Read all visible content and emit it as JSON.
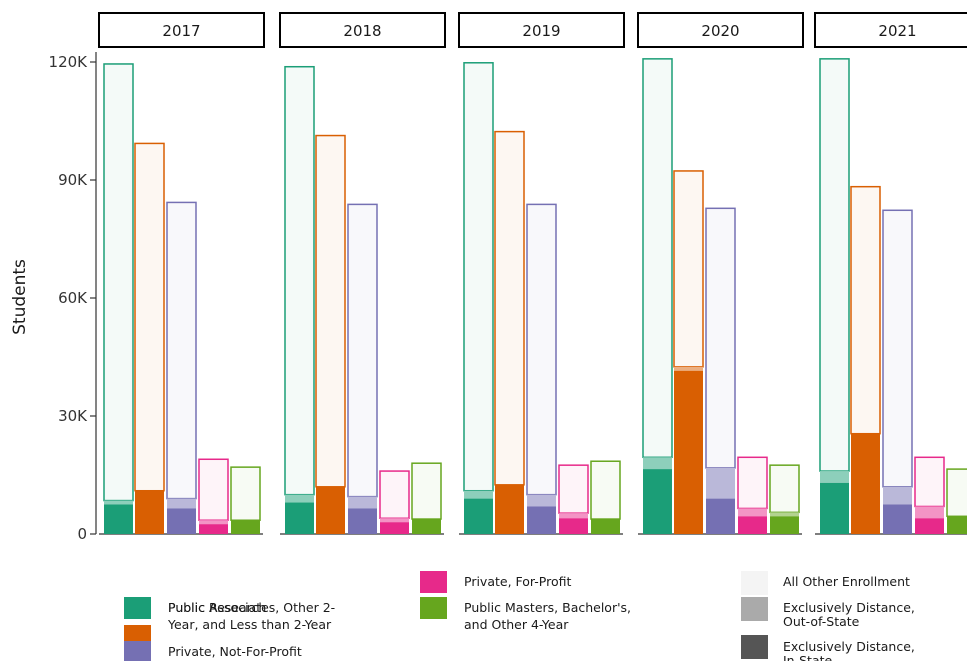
{
  "chart_data": {
    "type": "bar",
    "facets": [
      "2017",
      "2018",
      "2019",
      "2020",
      "2021"
    ],
    "ylabel": "Students",
    "xlabel": "",
    "ylim": [
      0,
      120000
    ],
    "yticks": [
      0,
      30000,
      60000,
      90000,
      120000
    ],
    "ytick_labels": [
      "0",
      "30K",
      "60K",
      "90K",
      "120K"
    ],
    "grid": false,
    "legend_position": "bottom",
    "sectors": [
      {
        "name": "Public Research",
        "color": "#1b9e77"
      },
      {
        "name": "Public Associates, Other 2-Year, and Less than 2-Year",
        "color": "#d95f02"
      },
      {
        "name": "Private, Not-For-Profit",
        "color": "#7570b3"
      },
      {
        "name": "Private, For-Profit",
        "color": "#e7298a"
      },
      {
        "name": "Public Masters, Bachelor's, and Other 4-Year",
        "color": "#66a61e"
      }
    ],
    "enrollment_types": [
      {
        "name": "All Other Enrollment",
        "color": "#f4f4f4"
      },
      {
        "name": "Exclusively Distance, Out-of-State",
        "color": "#aaaaaa"
      },
      {
        "name": "Exclusively Distance, In-State",
        "color": "#555555"
      }
    ],
    "values": {
      "2017": [
        {
          "total": 119500,
          "in_state": 7500,
          "out_of_state": 1000
        },
        {
          "total": 99300,
          "in_state": 11000,
          "out_of_state": 0
        },
        {
          "total": 84300,
          "in_state": 6500,
          "out_of_state": 2500
        },
        {
          "total": 19000,
          "in_state": 2500,
          "out_of_state": 1000
        },
        {
          "total": 17000,
          "in_state": 3500,
          "out_of_state": 0
        }
      ],
      "2018": [
        {
          "total": 118800,
          "in_state": 8000,
          "out_of_state": 2000
        },
        {
          "total": 101300,
          "in_state": 12000,
          "out_of_state": 0
        },
        {
          "total": 83800,
          "in_state": 6500,
          "out_of_state": 3000
        },
        {
          "total": 16000,
          "in_state": 3000,
          "out_of_state": 1000
        },
        {
          "total": 18000,
          "in_state": 3800,
          "out_of_state": 0
        }
      ],
      "2019": [
        {
          "total": 119800,
          "in_state": 9000,
          "out_of_state": 2000
        },
        {
          "total": 102300,
          "in_state": 12500,
          "out_of_state": 0
        },
        {
          "total": 83800,
          "in_state": 7000,
          "out_of_state": 3000
        },
        {
          "total": 17500,
          "in_state": 4000,
          "out_of_state": 1300
        },
        {
          "total": 18500,
          "in_state": 3800,
          "out_of_state": 0
        }
      ],
      "2020": [
        {
          "total": 120800,
          "in_state": 16500,
          "out_of_state": 3000
        },
        {
          "total": 92300,
          "in_state": 41500,
          "out_of_state": 1000
        },
        {
          "total": 82800,
          "in_state": 9000,
          "out_of_state": 7800
        },
        {
          "total": 19500,
          "in_state": 4500,
          "out_of_state": 2000
        },
        {
          "total": 17500,
          "in_state": 4500,
          "out_of_state": 1000
        }
      ],
      "2021": [
        {
          "total": 120800,
          "in_state": 13000,
          "out_of_state": 3000
        },
        {
          "total": 88300,
          "in_state": 25500,
          "out_of_state": 0
        },
        {
          "total": 82300,
          "in_state": 7500,
          "out_of_state": 4500
        },
        {
          "total": 19500,
          "in_state": 4000,
          "out_of_state": 3000
        },
        {
          "total": 16500,
          "in_state": 4500,
          "out_of_state": 0
        }
      ]
    }
  }
}
